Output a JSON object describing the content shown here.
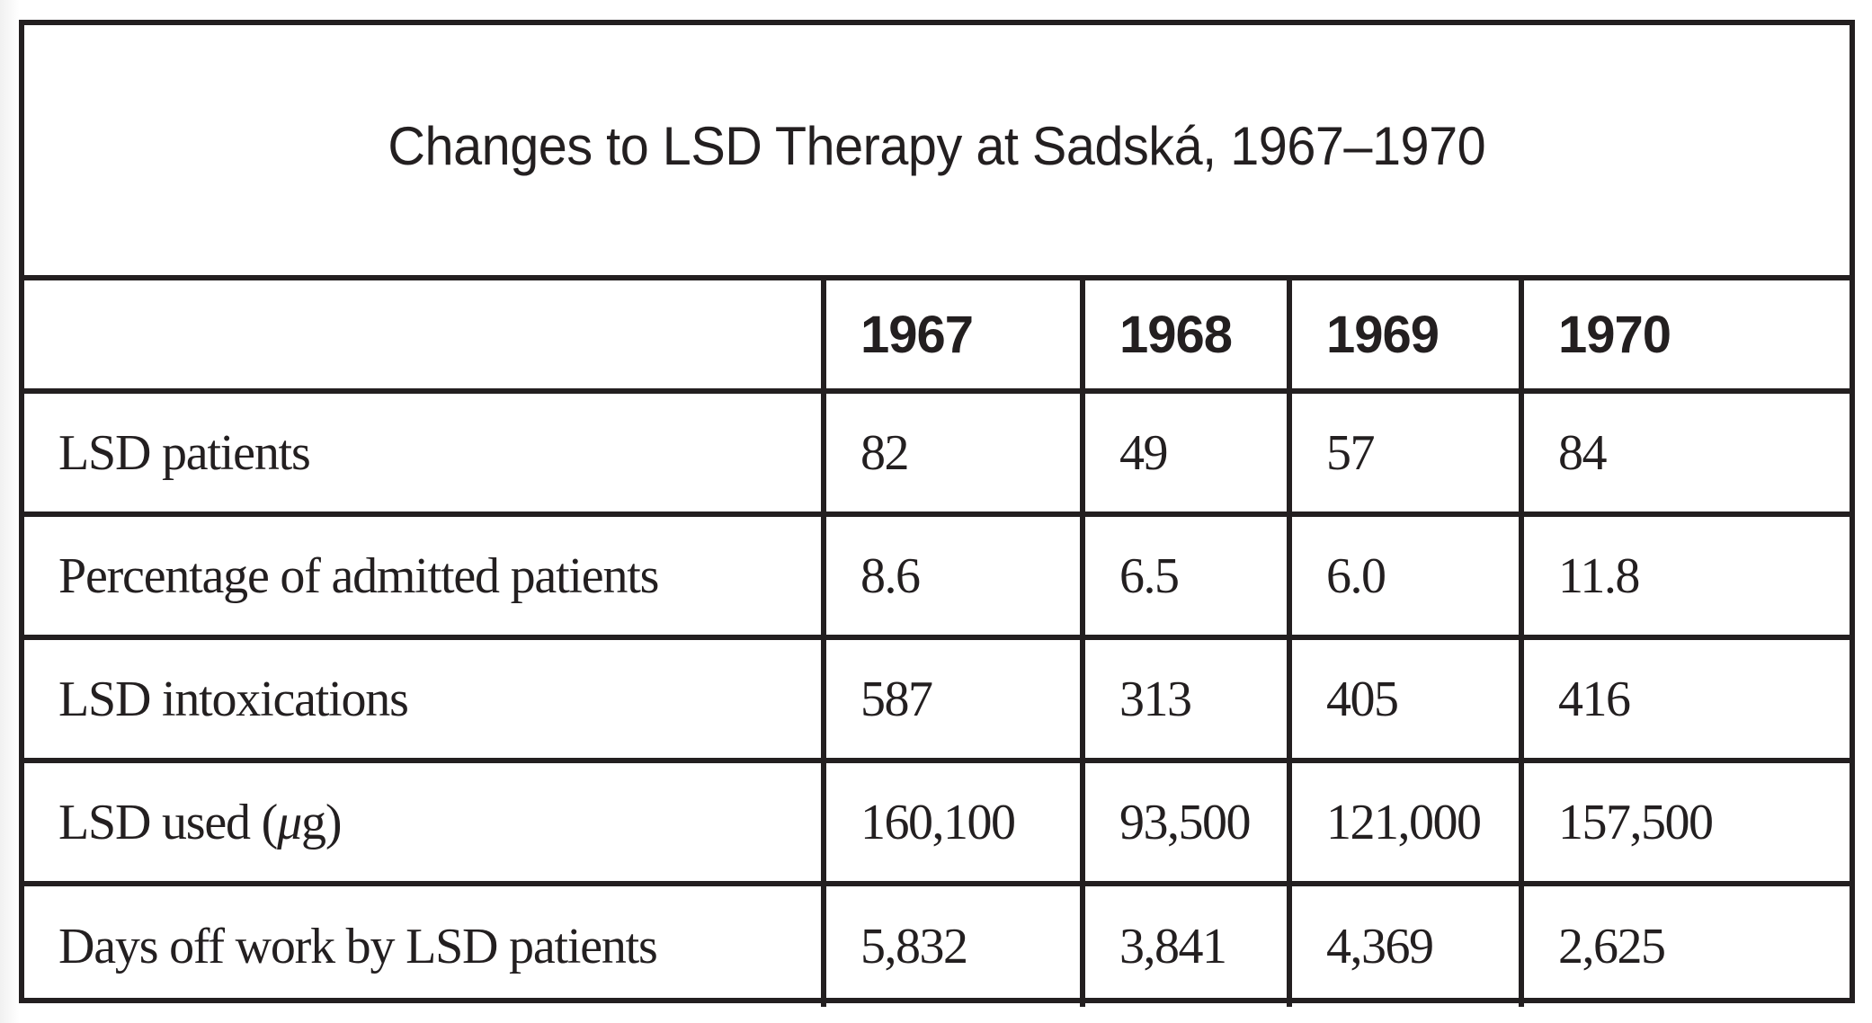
{
  "table": {
    "title": "Changes to LSD Therapy at Sadská, 1967–1970",
    "corner_header": "",
    "columns": [
      "1967",
      "1968",
      "1969",
      "1970"
    ],
    "rows": [
      {
        "label": "LSD patients",
        "values": [
          "82",
          "49",
          "57",
          "84"
        ]
      },
      {
        "label": "Percentage of admitted patients",
        "values": [
          "8.6",
          "6.5",
          "6.0",
          "11.8"
        ]
      },
      {
        "label": "LSD intoxications",
        "values": [
          "587",
          "313",
          "405",
          "416"
        ]
      },
      {
        "label_prefix": "LSD used (",
        "label_unit": "μ",
        "label_suffix": "g)",
        "values": [
          "160,100",
          "93,500",
          "121,000",
          "157,500"
        ]
      },
      {
        "label": "Days off work by LSD patients",
        "values": [
          "5,832",
          "3,841",
          "4,369",
          "2,625"
        ]
      }
    ]
  },
  "colors": {
    "text": "#231f20",
    "border": "#231f20",
    "background": "#ffffff"
  }
}
